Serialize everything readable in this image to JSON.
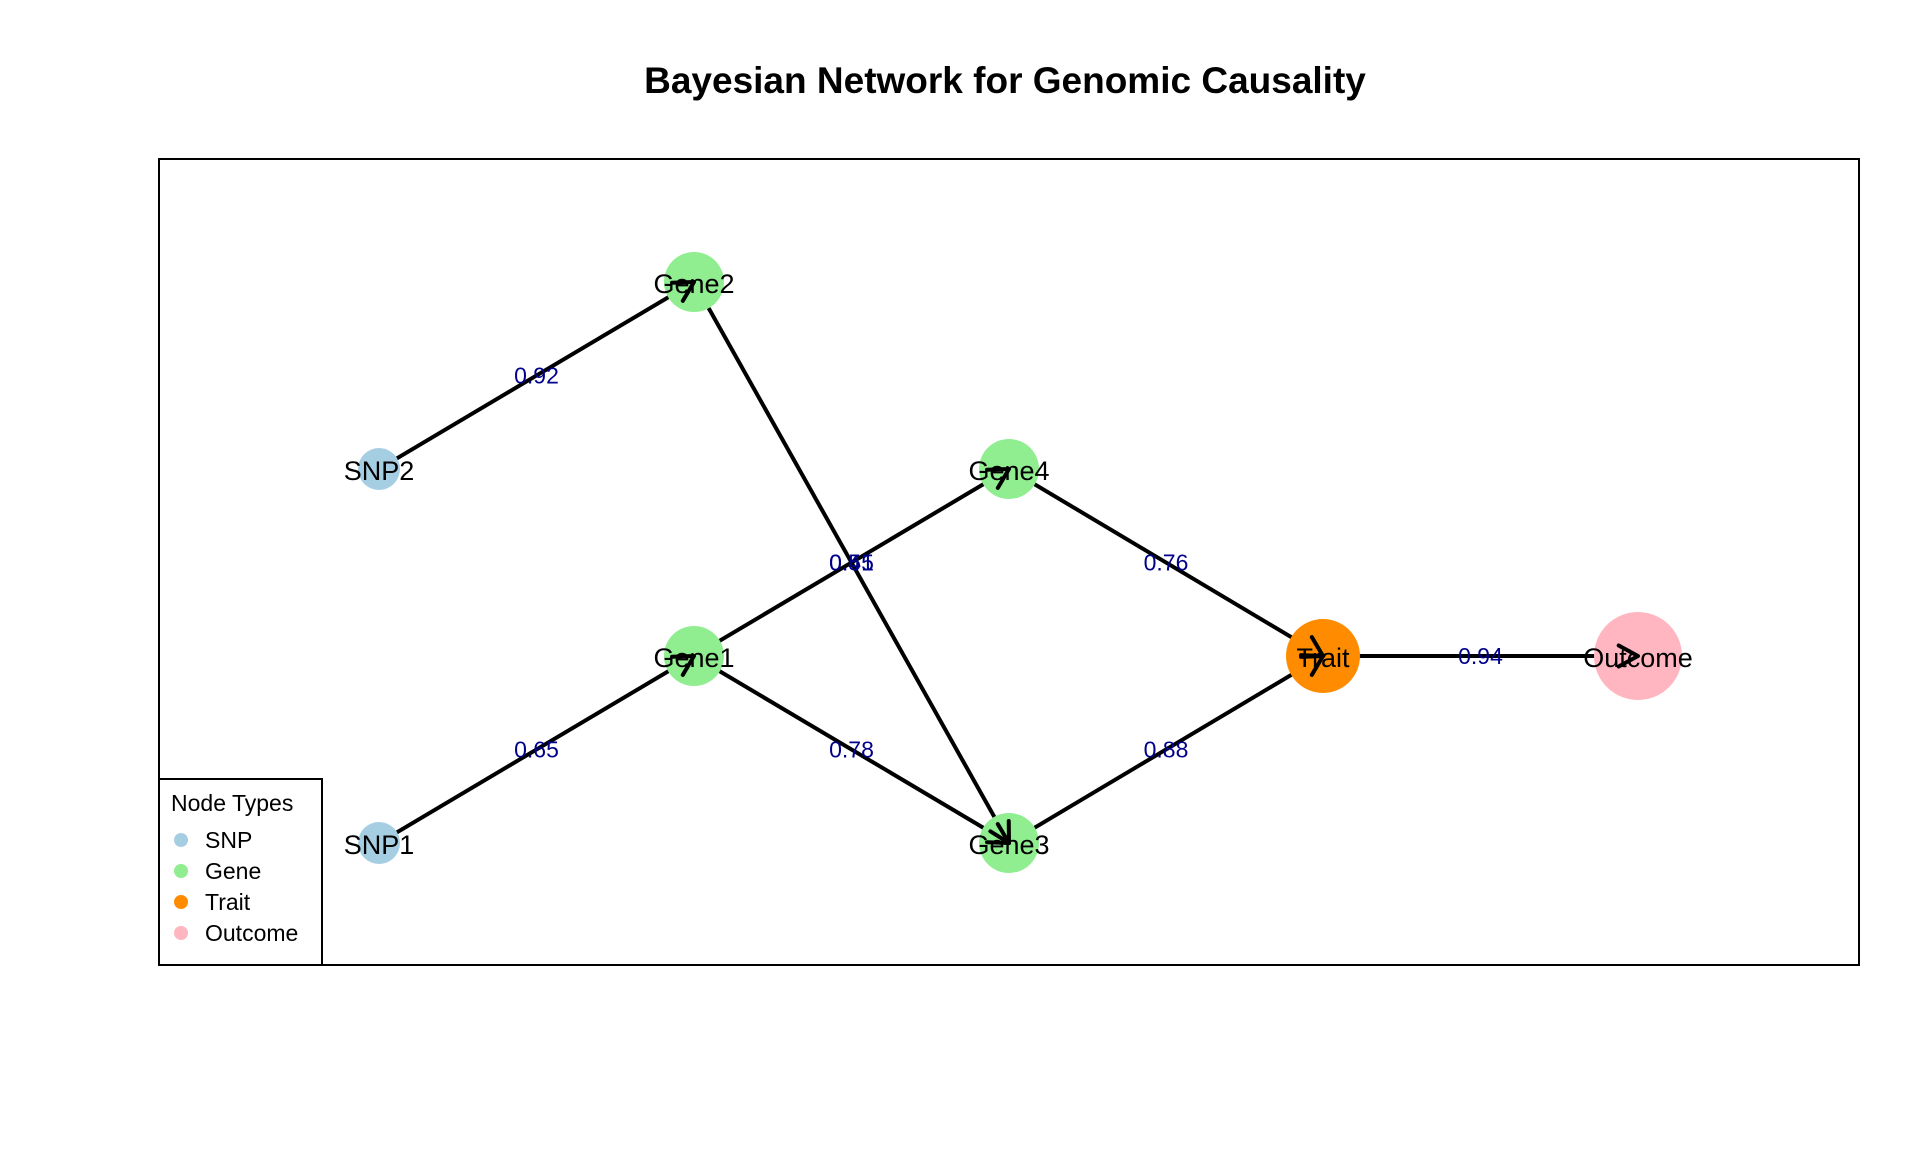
{
  "title": "Bayesian Network for Genomic Causality",
  "node_types": {
    "SNP": "#a6cee3",
    "Gene": "#90ee90",
    "Trait": "#ff8c00",
    "Outcome": "#ffb6c1"
  },
  "nodes": [
    {
      "id": "SNP1",
      "label": "SNP1",
      "type": "SNP"
    },
    {
      "id": "SNP2",
      "label": "SNP2",
      "type": "SNP"
    },
    {
      "id": "Gene1",
      "label": "Gene1",
      "type": "Gene"
    },
    {
      "id": "Gene2",
      "label": "Gene2",
      "type": "Gene"
    },
    {
      "id": "Gene3",
      "label": "Gene3",
      "type": "Gene"
    },
    {
      "id": "Gene4",
      "label": "Gene4",
      "type": "Gene"
    },
    {
      "id": "Trait",
      "label": "Trait",
      "type": "Trait"
    },
    {
      "id": "Outcome",
      "label": "Outcome",
      "type": "Outcome"
    }
  ],
  "edges": [
    {
      "from": "SNP1",
      "to": "Gene1",
      "weight": "0.65"
    },
    {
      "from": "SNP2",
      "to": "Gene2",
      "weight": "0.92"
    },
    {
      "from": "Gene1",
      "to": "Gene3",
      "weight": "0.78"
    },
    {
      "from": "Gene1",
      "to": "Gene4",
      "weight": "0.51"
    },
    {
      "from": "Gene2",
      "to": "Gene3",
      "weight": "0.45"
    },
    {
      "from": "Gene3",
      "to": "Trait",
      "weight": "0.88"
    },
    {
      "from": "Gene4",
      "to": "Trait",
      "weight": "0.76"
    },
    {
      "from": "Trait",
      "to": "Outcome",
      "weight": "0.94"
    }
  ],
  "legend": {
    "title": "Node Types",
    "items": [
      {
        "label": "SNP",
        "type": "SNP"
      },
      {
        "label": "Gene",
        "type": "Gene"
      },
      {
        "label": "Trait",
        "type": "Trait"
      },
      {
        "label": "Outcome",
        "type": "Outcome"
      }
    ]
  },
  "colors": {
    "edge": "#000000",
    "edge_label": "#00008b"
  }
}
